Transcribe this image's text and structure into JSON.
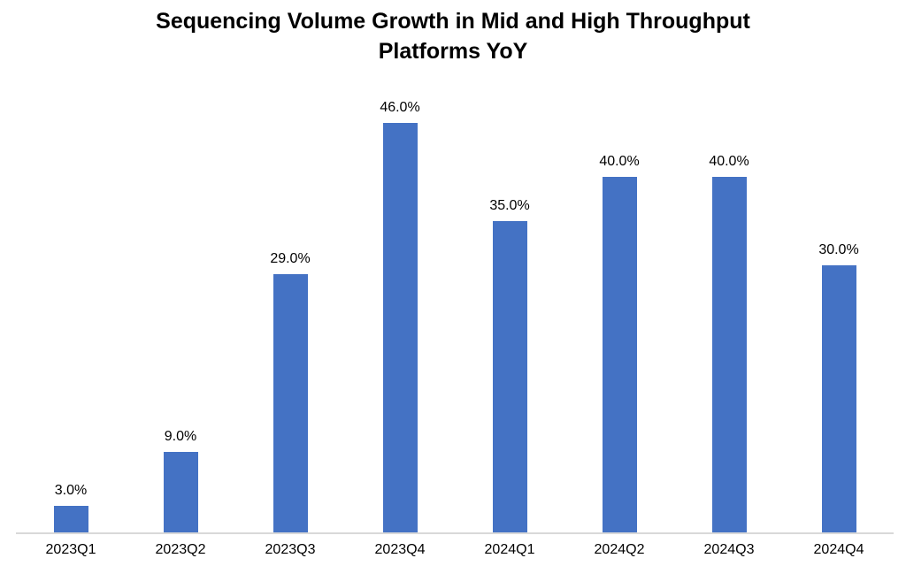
{
  "header": {
    "title_lines": [
      "Sequencing Volume Growth in Mid and High Throughput",
      "Platforms YoY"
    ]
  },
  "chart_data": {
    "type": "bar",
    "title": "Sequencing Volume Growth in Mid and High Throughput Platforms YoY",
    "categories": [
      "2023Q1",
      "2023Q2",
      "2023Q3",
      "2023Q4",
      "2024Q1",
      "2024Q2",
      "2024Q3",
      "2024Q4"
    ],
    "values": [
      3.0,
      9.0,
      29.0,
      46.0,
      35.0,
      40.0,
      40.0,
      30.0
    ],
    "labels": [
      "3.0%",
      "9.0%",
      "29.0%",
      "46.0%",
      "35.0%",
      "40.0%",
      "40.0%",
      "30.0%"
    ],
    "xlabel": "",
    "ylabel": "",
    "ylim": [
      0,
      50
    ],
    "grid": false,
    "legend": false,
    "bar_color": "#4472C4",
    "axis_line_color": "#D9D9D9",
    "text_color": "#000000",
    "background_color": "#FFFFFF"
  }
}
